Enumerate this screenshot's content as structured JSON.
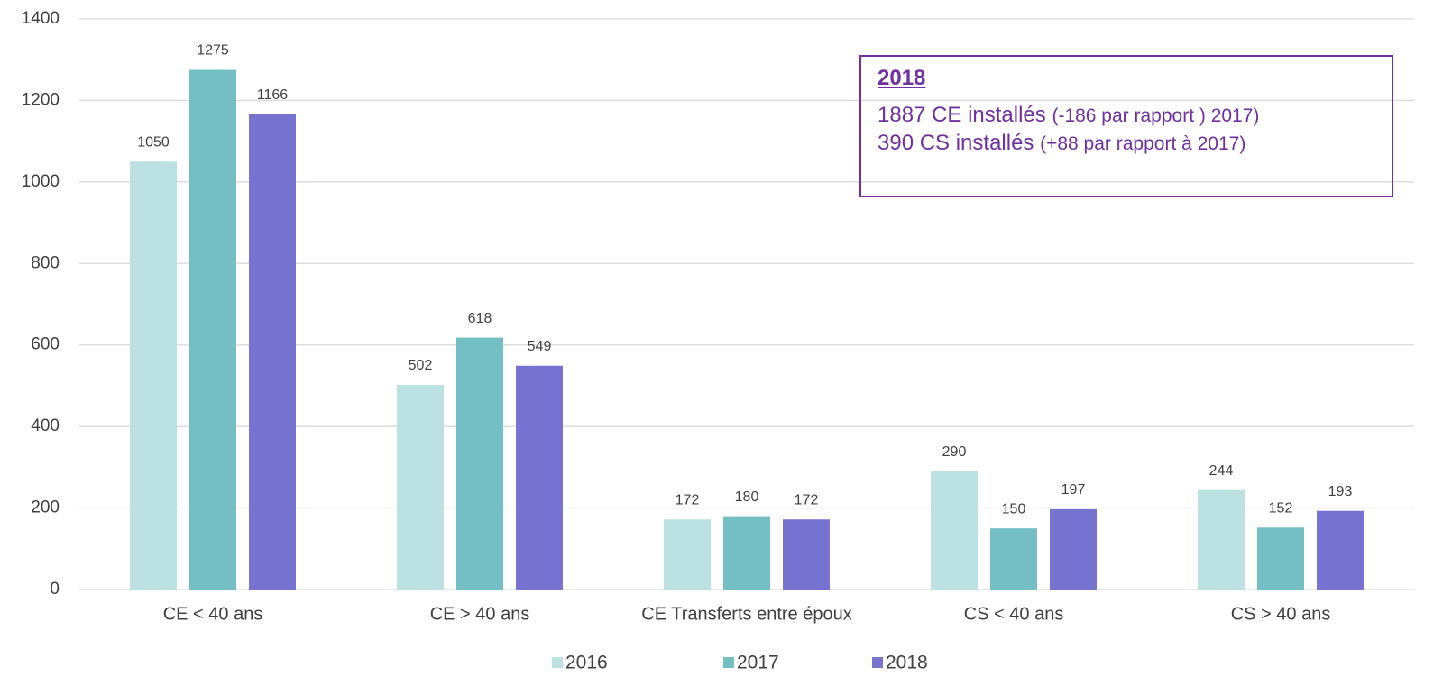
{
  "chart_data": {
    "type": "bar",
    "categories": [
      "CE < 40 ans",
      "CE > 40 ans",
      "CE Transferts entre époux",
      "CS < 40 ans",
      "CS > 40 ans"
    ],
    "series": [
      {
        "name": "2016",
        "color": "#bce1e3",
        "values": [
          1050,
          502,
          172,
          290,
          244
        ]
      },
      {
        "name": "2017",
        "color": "#74bfc4",
        "values": [
          1275,
          618,
          180,
          150,
          152
        ]
      },
      {
        "name": "2018",
        "color": "#7673d1",
        "values": [
          1166,
          549,
          172,
          197,
          193
        ]
      }
    ],
    "ylim": [
      0,
      1400
    ],
    "yticks": [
      0,
      200,
      400,
      600,
      800,
      1000,
      1200,
      1400
    ],
    "grid": true,
    "legend": "bottom",
    "annotation": {
      "title": "2018",
      "color": "#7030a0",
      "lines": [
        [
          "1887 CE installés",
          "(-186 par rapport ) 2017)"
        ],
        [
          "390 CS installés",
          "(+88 par rapport à 2017)"
        ]
      ]
    }
  }
}
